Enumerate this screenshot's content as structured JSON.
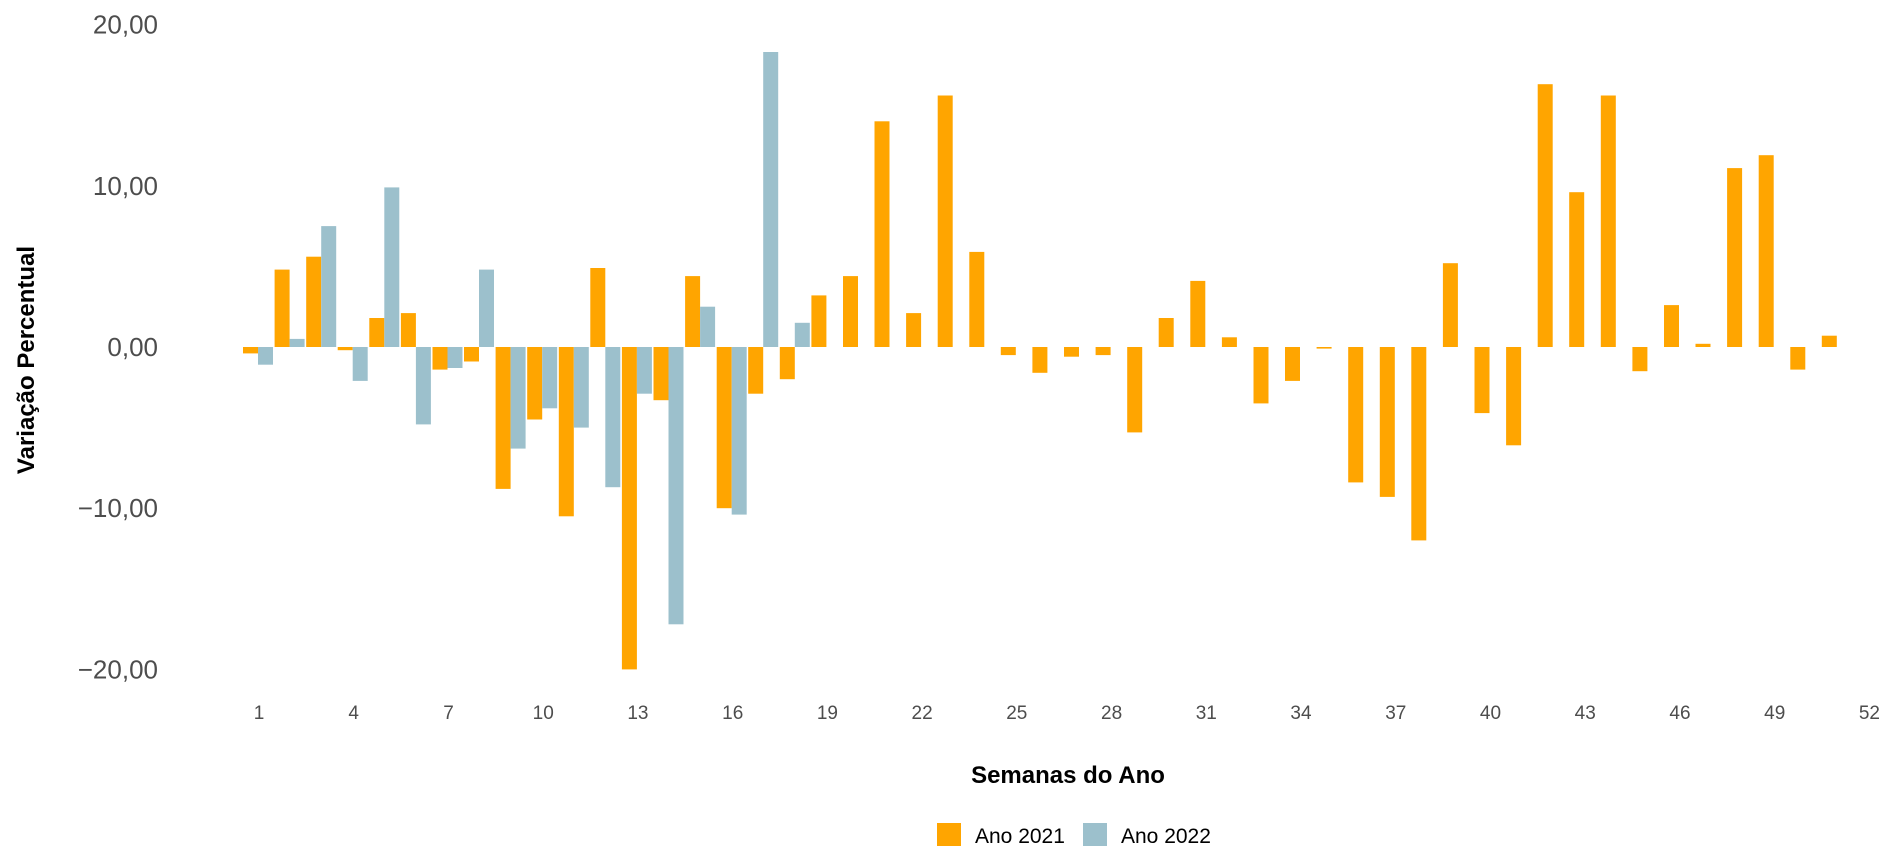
{
  "chart_data": {
    "type": "bar",
    "title": "",
    "xlabel": "Semanas do Ano",
    "ylabel": "Variação Percentual",
    "ylim": [
      -20,
      20
    ],
    "yticks": [
      "20,00",
      "10,00",
      "0,00",
      "−10,00",
      "−20,00"
    ],
    "ytick_values": [
      20,
      10,
      0,
      -10,
      -20
    ],
    "xticks": [
      "1",
      "4",
      "7",
      "10",
      "13",
      "16",
      "19",
      "22",
      "25",
      "28",
      "31",
      "34",
      "37",
      "40",
      "43",
      "46",
      "49",
      "52"
    ],
    "xtick_values": [
      1,
      4,
      7,
      10,
      13,
      16,
      19,
      22,
      25,
      28,
      31,
      34,
      37,
      40,
      43,
      46,
      49,
      52
    ],
    "legend_position": "bottom",
    "grid": false,
    "weeks": [
      1,
      2,
      3,
      4,
      5,
      6,
      7,
      8,
      9,
      10,
      11,
      12,
      13,
      14,
      15,
      16,
      17,
      18,
      19,
      20,
      21,
      22,
      23,
      24,
      25,
      26,
      27,
      28,
      29,
      30,
      31,
      32,
      33,
      34,
      35,
      36,
      37,
      38,
      39,
      40,
      41,
      42,
      43,
      44,
      45,
      46,
      47,
      48,
      49,
      50,
      51,
      52
    ],
    "series": [
      {
        "name": "Ano 2021",
        "color": "#ffa500",
        "values": [
          -0.4,
          4.8,
          5.6,
          -0.2,
          1.8,
          2.1,
          -1.4,
          -0.9,
          -8.8,
          -4.5,
          -10.5,
          4.9,
          -20.0,
          -3.3,
          4.4,
          -10.0,
          -2.9,
          -2.0,
          3.2,
          4.4,
          14.0,
          2.1,
          15.6,
          5.9,
          -0.5,
          -1.6,
          -0.6,
          -0.5,
          -5.3,
          1.8,
          4.1,
          0.6,
          -3.5,
          -2.1,
          -0.1,
          -8.4,
          -9.3,
          -12.0,
          5.2,
          -4.1,
          -6.1,
          16.3,
          9.6,
          15.6,
          -1.5,
          2.6,
          0.2,
          11.1,
          11.9,
          -1.4,
          0.7
        ]
      },
      {
        "name": "Ano 2022",
        "color": "#9cc0cc",
        "values": [
          -1.1,
          0.5,
          7.5,
          -2.1,
          9.9,
          -4.8,
          -1.3,
          4.8,
          -6.3,
          -3.8,
          -5.0,
          -8.7,
          -2.9,
          -17.2,
          2.5,
          -10.4,
          18.3,
          1.5
        ]
      }
    ]
  }
}
